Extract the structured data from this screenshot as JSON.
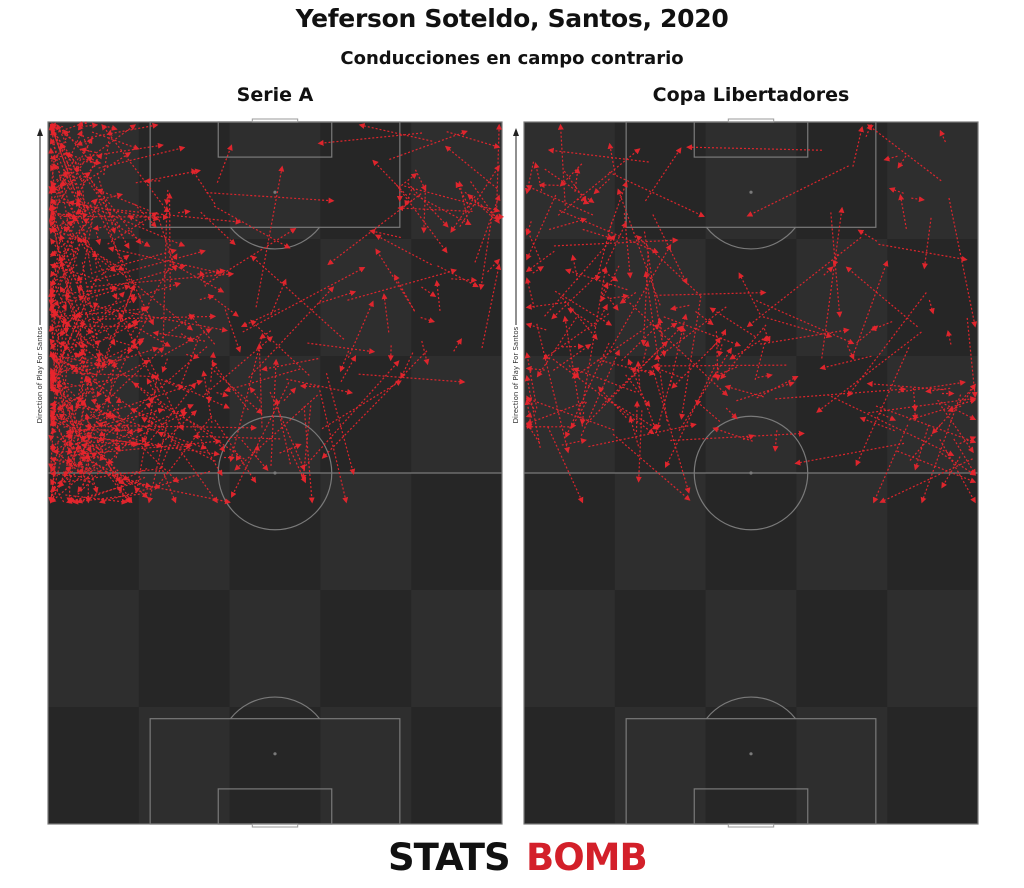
{
  "title": "Yeferson Soteldo, Santos, 2020",
  "subtitle": "Conducciones en campo contrario",
  "direction_label": "Direction of Play For Santos",
  "logo": {
    "part1": "STATS",
    "part2": "BOMB"
  },
  "colors": {
    "pitch": "#2e2e2e",
    "pitch_alt": "#262626",
    "lines": "#7a7a7a",
    "arrow": "#e8252d",
    "brand_red": "#d3202a"
  },
  "chart_data": [
    {
      "type": "scatter",
      "title": "Serie A",
      "description_units": "pitch coordinates: x 0-80 across (left to right), y 0-120 along direction of play",
      "seed": 11,
      "count": 460,
      "clusters": [
        {
          "weight": 0.58,
          "x": [
            1,
            10
          ],
          "y": [
            60,
            120
          ]
        },
        {
          "weight": 0.14,
          "x": [
            10,
            30
          ],
          "y": [
            66,
            110
          ]
        },
        {
          "weight": 0.12,
          "x": [
            28,
            55
          ],
          "y": [
            60,
            90
          ]
        },
        {
          "weight": 0.08,
          "x": [
            60,
            80
          ],
          "y": [
            80,
            120
          ]
        },
        {
          "weight": 0.08,
          "x": [
            1,
            20
          ],
          "y": [
            55,
            70
          ]
        }
      ]
    },
    {
      "type": "scatter",
      "title": "Copa Libertadores",
      "description_units": "pitch coordinates: x 0-80 across (left to right), y 0-120 along direction of play",
      "seed": 29,
      "count": 200,
      "clusters": [
        {
          "weight": 0.46,
          "x": [
            1,
            24
          ],
          "y": [
            64,
            114
          ]
        },
        {
          "weight": 0.18,
          "x": [
            20,
            45
          ],
          "y": [
            62,
            92
          ]
        },
        {
          "weight": 0.14,
          "x": [
            50,
            80
          ],
          "y": [
            80,
            118
          ]
        },
        {
          "weight": 0.12,
          "x": [
            36,
            70
          ],
          "y": [
            68,
            86
          ]
        },
        {
          "weight": 0.1,
          "x": [
            65,
            80
          ],
          "y": [
            62,
            75
          ]
        }
      ]
    }
  ]
}
